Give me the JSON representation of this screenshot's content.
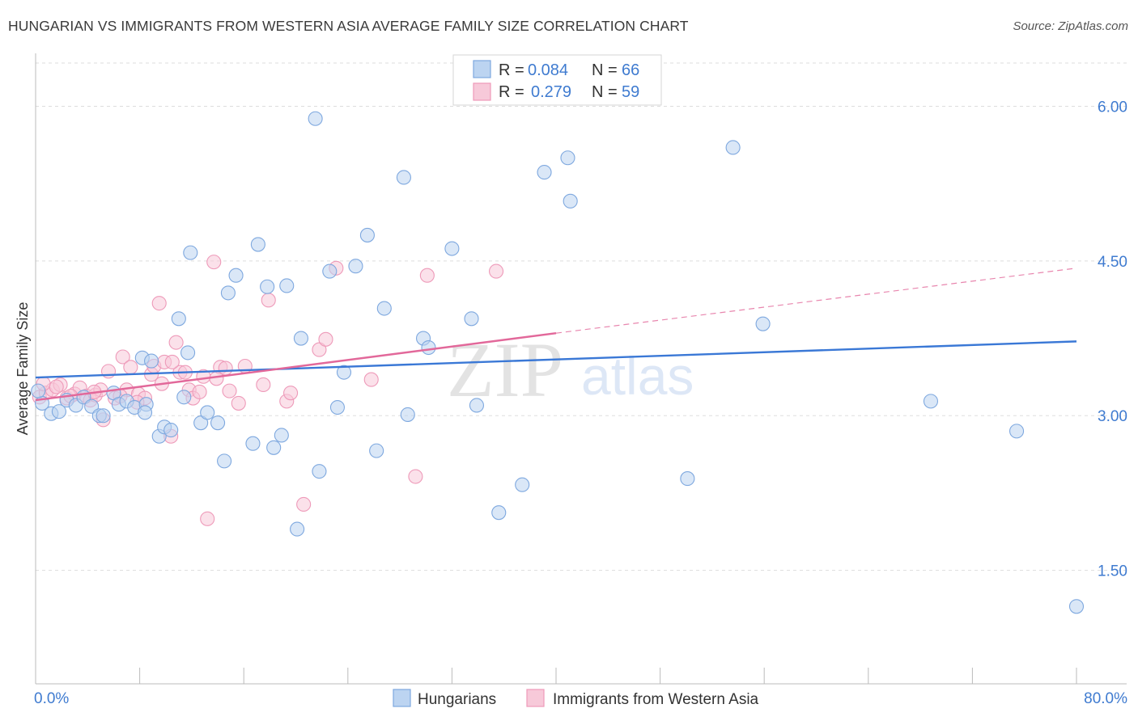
{
  "header": {
    "title": "HUNGARIAN VS IMMIGRANTS FROM WESTERN ASIA AVERAGE FAMILY SIZE CORRELATION CHART",
    "source": "Source: ZipAtlas.com"
  },
  "watermark": {
    "zip": "ZIP",
    "atlas": "atlas"
  },
  "colors": {
    "blue": "#3a78d6",
    "blue_fill": "#bcd4f1",
    "blue_stroke": "#7ea8df",
    "pink": "#e2689a",
    "pink_fill": "#f7c9d9",
    "pink_stroke": "#ee9ab9",
    "grid": "#dddddd",
    "tick_text": "#3f7bd0"
  },
  "stats_legend": [
    {
      "r_label": "R =",
      "r_value": "0.084",
      "n_label": "N =",
      "n_value": "66"
    },
    {
      "r_label": "R =",
      "r_value": "0.279",
      "n_label": "N =",
      "n_value": "59"
    }
  ],
  "chart_data": {
    "type": "scatter",
    "xlabel": "",
    "ylabel": "Average Family Size",
    "xlim": [
      0,
      80
    ],
    "ylim": [
      0.4,
      6.5
    ],
    "x_tick_labels": [
      {
        "value": 0,
        "label": "0.0%"
      },
      {
        "value": 80,
        "label": "80.0%"
      }
    ],
    "x_minor_ticks": [
      0,
      8,
      16,
      24,
      32,
      40,
      48,
      56,
      64,
      72,
      80
    ],
    "y_ticks": [
      {
        "value": 1.5,
        "label": "1.50"
      },
      {
        "value": 3.0,
        "label": "3.00"
      },
      {
        "value": 4.5,
        "label": "4.50"
      },
      {
        "value": 6.0,
        "label": "6.00"
      }
    ],
    "grid": true,
    "legend_position": "bottom-center",
    "series": [
      {
        "name": "Hungarians",
        "color": "#3a78d6",
        "trend": {
          "x0": 0,
          "y0": 3.37,
          "x1": 80,
          "y1": 3.72
        },
        "points": [
          [
            0.5,
            3.12
          ],
          [
            1.2,
            3.02
          ],
          [
            1.8,
            3.04
          ],
          [
            2.4,
            3.15
          ],
          [
            3.1,
            3.1
          ],
          [
            3.7,
            3.18
          ],
          [
            4.3,
            3.09
          ],
          [
            4.9,
            3.0
          ],
          [
            5.2,
            3.0
          ],
          [
            6.0,
            3.22
          ],
          [
            6.4,
            3.11
          ],
          [
            7.0,
            3.14
          ],
          [
            7.6,
            3.08
          ],
          [
            8.2,
            3.56
          ],
          [
            8.5,
            3.11
          ],
          [
            8.4,
            3.03
          ],
          [
            8.9,
            3.53
          ],
          [
            9.5,
            2.8
          ],
          [
            9.9,
            2.89
          ],
          [
            10.4,
            2.86
          ],
          [
            11.0,
            3.94
          ],
          [
            11.4,
            3.18
          ],
          [
            11.7,
            3.61
          ],
          [
            11.9,
            4.58
          ],
          [
            12.7,
            2.93
          ],
          [
            13.2,
            3.03
          ],
          [
            14.0,
            2.93
          ],
          [
            14.5,
            2.56
          ],
          [
            14.8,
            4.19
          ],
          [
            15.4,
            4.36
          ],
          [
            16.7,
            2.73
          ],
          [
            17.1,
            4.66
          ],
          [
            17.8,
            4.25
          ],
          [
            18.3,
            2.69
          ],
          [
            18.9,
            2.81
          ],
          [
            19.3,
            4.26
          ],
          [
            20.1,
            1.9
          ],
          [
            20.4,
            3.75
          ],
          [
            21.5,
            5.88
          ],
          [
            21.8,
            2.46
          ],
          [
            22.6,
            4.4
          ],
          [
            23.2,
            3.08
          ],
          [
            23.7,
            3.42
          ],
          [
            24.6,
            4.45
          ],
          [
            25.5,
            4.75
          ],
          [
            26.2,
            2.66
          ],
          [
            26.8,
            4.04
          ],
          [
            28.3,
            5.31
          ],
          [
            28.6,
            3.01
          ],
          [
            29.8,
            3.75
          ],
          [
            30.2,
            3.66
          ],
          [
            32.0,
            4.62
          ],
          [
            33.5,
            3.94
          ],
          [
            33.9,
            3.1
          ],
          [
            35.6,
            2.06
          ],
          [
            37.4,
            2.33
          ],
          [
            39.1,
            5.36
          ],
          [
            40.9,
            5.5
          ],
          [
            41.1,
            5.08
          ],
          [
            50.1,
            2.39
          ],
          [
            53.6,
            5.6
          ],
          [
            55.9,
            3.89
          ],
          [
            68.8,
            3.14
          ],
          [
            75.4,
            2.85
          ],
          [
            80.0,
            1.15
          ],
          [
            0.2,
            3.24
          ]
        ]
      },
      {
        "name": "Immigrants from Western Asia",
        "color": "#e2689a",
        "trend": {
          "x0": 0,
          "y0": 3.15,
          "x1": 40,
          "y1": 3.8
        },
        "trend_dashed": {
          "x0": 40,
          "y0": 3.8,
          "x1": 80,
          "y1": 4.43
        },
        "points": [
          [
            0.3,
            3.18
          ],
          [
            0.8,
            3.22
          ],
          [
            1.3,
            3.25
          ],
          [
            1.9,
            3.3
          ],
          [
            2.4,
            3.17
          ],
          [
            3.0,
            3.21
          ],
          [
            3.4,
            3.27
          ],
          [
            3.9,
            3.19
          ],
          [
            4.2,
            3.15
          ],
          [
            4.6,
            3.2
          ],
          [
            5.0,
            3.25
          ],
          [
            5.2,
            2.96
          ],
          [
            5.6,
            3.43
          ],
          [
            6.1,
            3.17
          ],
          [
            6.7,
            3.57
          ],
          [
            7.0,
            3.25
          ],
          [
            7.3,
            3.47
          ],
          [
            7.9,
            3.21
          ],
          [
            8.4,
            3.17
          ],
          [
            8.9,
            3.4
          ],
          [
            9.1,
            3.48
          ],
          [
            9.5,
            4.09
          ],
          [
            9.9,
            3.52
          ],
          [
            10.4,
            2.8
          ],
          [
            10.8,
            3.71
          ],
          [
            11.1,
            3.42
          ],
          [
            11.5,
            3.42
          ],
          [
            11.8,
            3.25
          ],
          [
            12.1,
            3.17
          ],
          [
            12.6,
            3.23
          ],
          [
            13.2,
            2.0
          ],
          [
            13.7,
            4.49
          ],
          [
            14.2,
            3.47
          ],
          [
            14.6,
            3.46
          ],
          [
            14.9,
            3.24
          ],
          [
            15.6,
            3.12
          ],
          [
            16.1,
            3.48
          ],
          [
            17.5,
            3.3
          ],
          [
            17.9,
            4.12
          ],
          [
            19.3,
            3.14
          ],
          [
            19.6,
            3.22
          ],
          [
            20.6,
            2.14
          ],
          [
            21.8,
            3.64
          ],
          [
            22.3,
            3.74
          ],
          [
            23.1,
            4.43
          ],
          [
            25.8,
            3.35
          ],
          [
            29.2,
            2.41
          ],
          [
            30.1,
            4.36
          ],
          [
            35.4,
            4.4
          ],
          [
            2.7,
            3.19
          ],
          [
            4.5,
            3.23
          ],
          [
            6.5,
            3.19
          ],
          [
            7.8,
            3.13
          ],
          [
            9.7,
            3.31
          ],
          [
            10.5,
            3.52
          ],
          [
            12.9,
            3.38
          ],
          [
            13.9,
            3.36
          ],
          [
            0.6,
            3.31
          ],
          [
            1.6,
            3.28
          ]
        ]
      }
    ]
  }
}
